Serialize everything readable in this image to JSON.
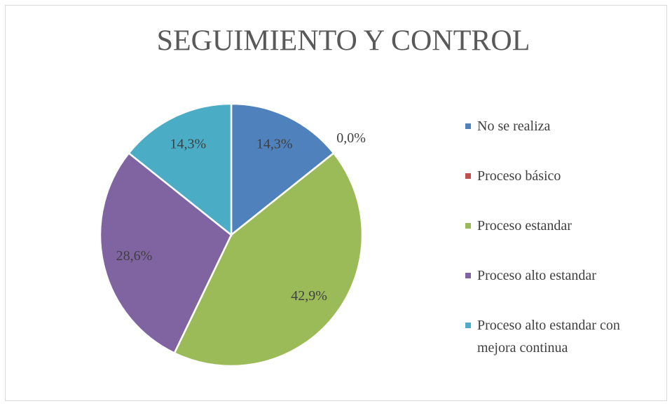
{
  "chart_data": {
    "type": "pie",
    "title": "SEGUIMIENTO Y CONTROL",
    "categories": [
      "No se realiza",
      "Proceso básico",
      "Proceso estandar",
      "Proceso alto estandar",
      "Proceso alto estandar con mejora continua"
    ],
    "values": [
      14.3,
      0.0,
      42.9,
      28.6,
      14.3
    ],
    "value_labels": [
      "14,3%",
      "0,0%",
      "42,9%",
      "28,6%",
      "14,3%"
    ],
    "colors": [
      "#4f81bd",
      "#c0504d",
      "#9bbb59",
      "#8064a2",
      "#4bacc6"
    ],
    "legend": "right"
  }
}
